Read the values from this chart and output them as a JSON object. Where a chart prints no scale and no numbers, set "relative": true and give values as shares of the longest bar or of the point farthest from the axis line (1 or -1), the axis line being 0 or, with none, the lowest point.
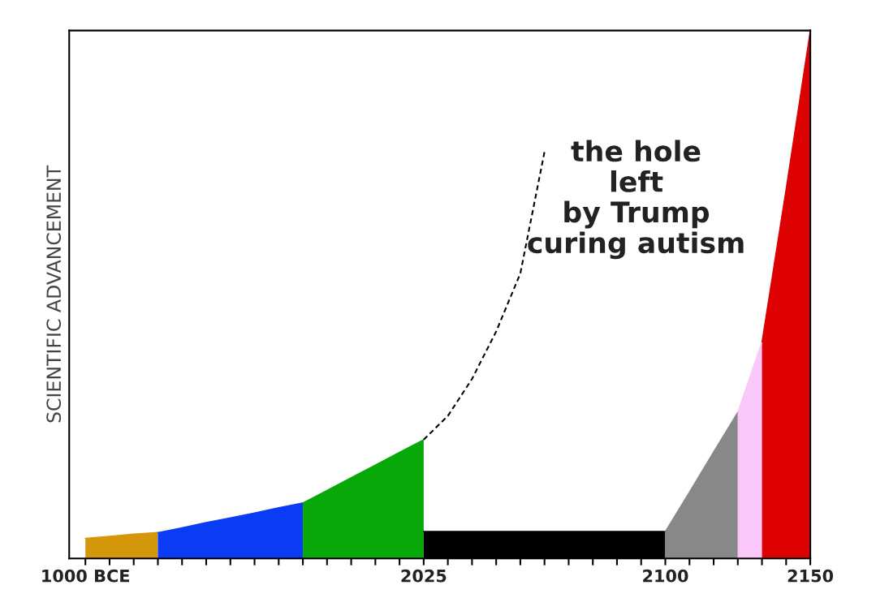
{
  "chart_data": {
    "type": "area",
    "relative": true,
    "ylabel": "SCIENTIFIC ADVANCEMENT",
    "categories": [
      "1000 BCE",
      null,
      null,
      null,
      null,
      null,
      null,
      null,
      null,
      null,
      null,
      null,
      null,
      null,
      "2025",
      null,
      null,
      null,
      null,
      null,
      null,
      null,
      null,
      null,
      "2100",
      null,
      null,
      null,
      null,
      null,
      "2150"
    ],
    "series": [
      {
        "color": "#d4960a",
        "values": [
          0.038,
          0.042,
          0.046,
          0.049,
          null,
          null,
          null,
          null,
          null,
          null,
          null,
          null,
          null,
          null,
          null,
          null,
          null,
          null,
          null,
          null,
          null,
          null,
          null,
          null,
          null,
          null,
          null,
          null,
          null,
          null,
          null
        ]
      },
      {
        "color": "#0a3cf5",
        "values": [
          null,
          null,
          null,
          0.049,
          0.058,
          0.068,
          0.077,
          0.086,
          0.096,
          0.105,
          null,
          null,
          null,
          null,
          null,
          null,
          null,
          null,
          null,
          null,
          null,
          null,
          null,
          null,
          null,
          null,
          null,
          null,
          null,
          null,
          null
        ]
      },
      {
        "color": "#08a808",
        "values": [
          null,
          null,
          null,
          null,
          null,
          null,
          null,
          null,
          null,
          0.105,
          0.129,
          0.153,
          0.177,
          0.201,
          0.225,
          null,
          null,
          null,
          null,
          null,
          null,
          null,
          null,
          null,
          null,
          null,
          null,
          null,
          null,
          null,
          null
        ]
      },
      {
        "color": "#000000",
        "values": [
          null,
          null,
          null,
          null,
          null,
          null,
          null,
          null,
          null,
          null,
          null,
          null,
          null,
          null,
          0.051,
          0.051,
          0.051,
          0.051,
          0.051,
          0.051,
          0.051,
          0.051,
          0.051,
          0.051,
          0.051,
          null,
          null,
          null,
          null,
          null,
          null
        ]
      },
      {
        "color": "#888888",
        "values": [
          null,
          null,
          null,
          null,
          null,
          null,
          null,
          null,
          null,
          null,
          null,
          null,
          null,
          null,
          null,
          null,
          null,
          null,
          null,
          null,
          null,
          null,
          null,
          null,
          0.051,
          0.126,
          0.202,
          0.277,
          null,
          null,
          null
        ]
      },
      {
        "color": "#f9c8f9",
        "values": [
          null,
          null,
          null,
          null,
          null,
          null,
          null,
          null,
          null,
          null,
          null,
          null,
          null,
          null,
          null,
          null,
          null,
          null,
          null,
          null,
          null,
          null,
          null,
          null,
          null,
          null,
          null,
          0.277,
          0.41,
          null,
          null
        ]
      },
      {
        "color": "#dd0000",
        "values": [
          null,
          null,
          null,
          null,
          null,
          null,
          null,
          null,
          null,
          null,
          null,
          null,
          null,
          null,
          null,
          null,
          null,
          null,
          null,
          null,
          null,
          null,
          null,
          null,
          null,
          null,
          null,
          null,
          0.41,
          0.7,
          1.0
        ]
      },
      {
        "type": "line",
        "color": "#000000",
        "line_style": "dashed",
        "values": [
          null,
          null,
          null,
          null,
          null,
          null,
          null,
          null,
          null,
          null,
          null,
          null,
          null,
          null,
          0.225,
          0.27,
          0.34,
          0.43,
          0.54,
          0.77,
          null,
          null,
          null,
          null,
          null,
          null,
          null,
          null,
          null,
          null,
          null
        ]
      }
    ],
    "annotations": [
      "the hole\nleft\nby Trump\ncuring autism"
    ]
  }
}
